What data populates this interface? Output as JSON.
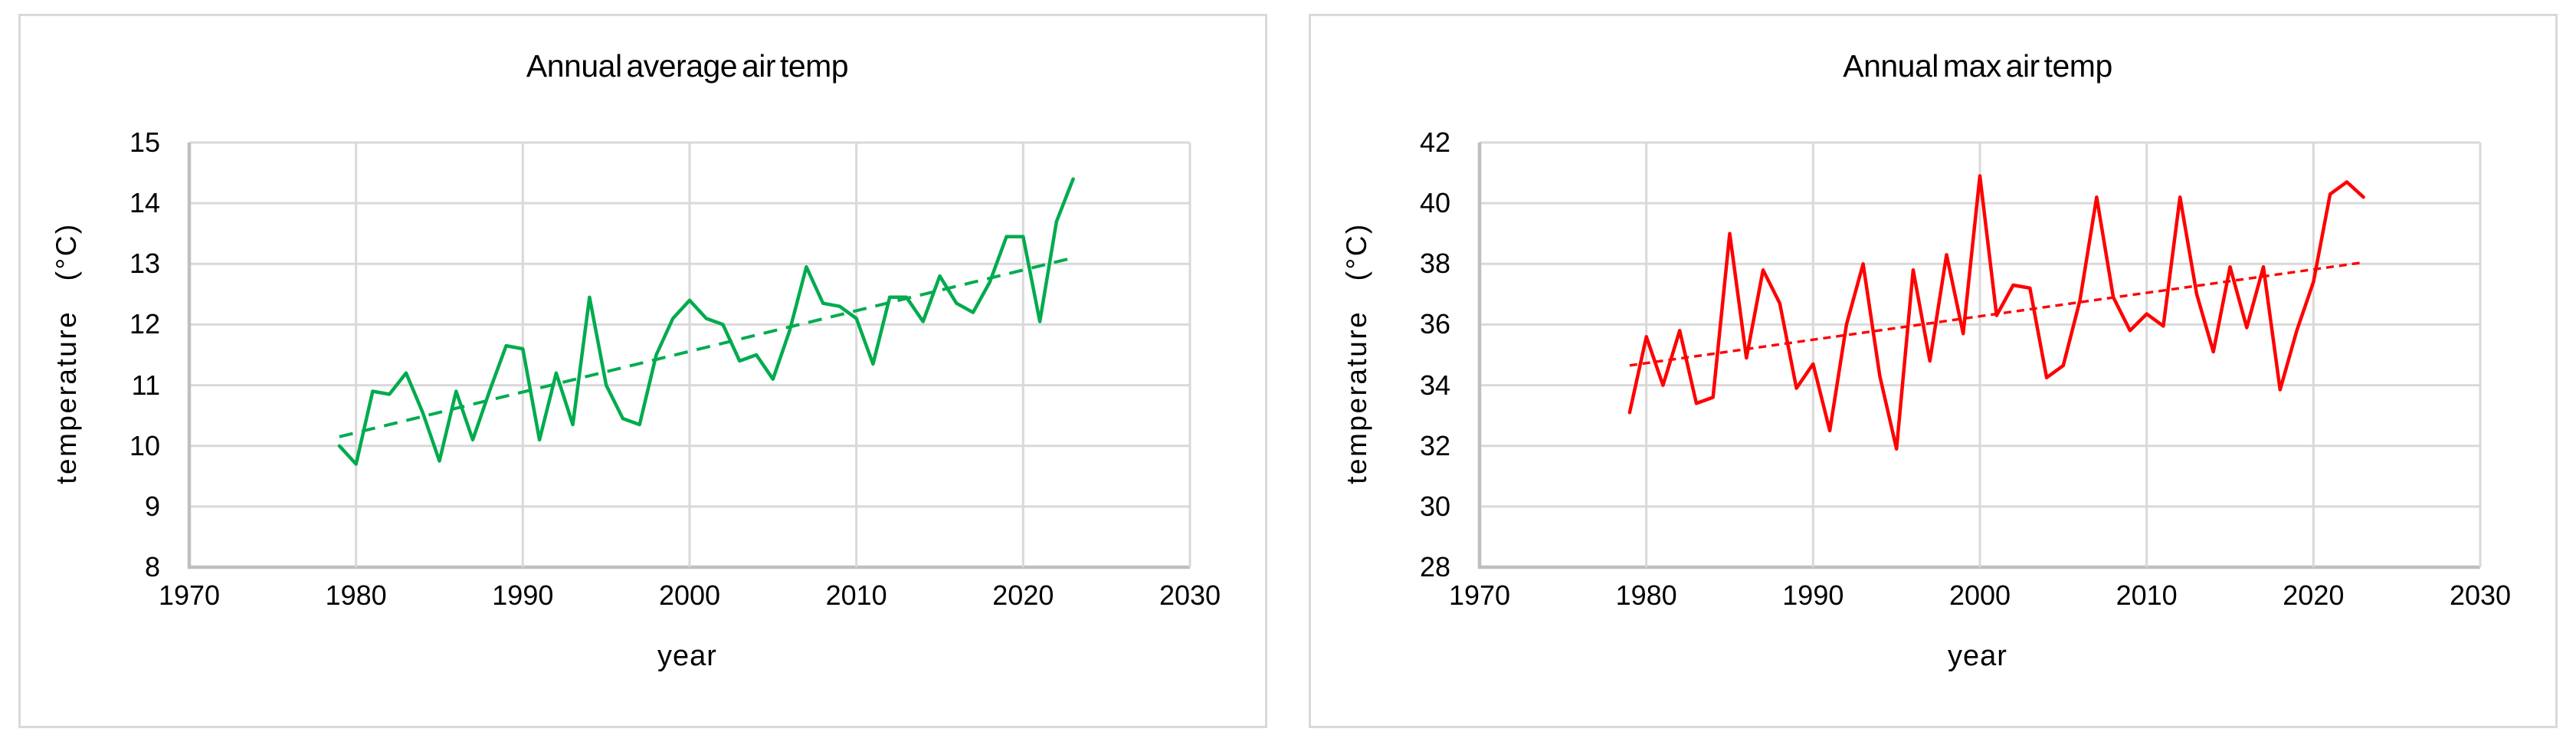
{
  "colors": {
    "series_green": "#00AB4E",
    "series_red": "#FF0000",
    "gridline": "#D9D9D9",
    "axis_line": "#BFBFBF",
    "panel_border": "#D9D9D9",
    "text": "#000000",
    "background": "#FFFFFF"
  },
  "chart_data": [
    {
      "type": "line",
      "title": "Annual average air temp",
      "xlabel": "year",
      "ylabel": "temperature   (°C)",
      "xlim": [
        1970,
        2030
      ],
      "ylim": [
        8,
        15
      ],
      "x_ticks": [
        1970,
        1980,
        1990,
        2000,
        2010,
        2020,
        2030
      ],
      "y_ticks": [
        8,
        9,
        10,
        11,
        12,
        13,
        14,
        15
      ],
      "grid": true,
      "legend_position": "none",
      "series": [
        {
          "name": "annual-average-temp",
          "color": "#00AB4E",
          "line_width": 4.5,
          "x": [
            1979,
            1980,
            1981,
            1982,
            1983,
            1984,
            1985,
            1986,
            1987,
            1988,
            1989,
            1990,
            1991,
            1992,
            1993,
            1994,
            1995,
            1996,
            1997,
            1998,
            1999,
            2000,
            2001,
            2002,
            2003,
            2004,
            2005,
            2006,
            2007,
            2008,
            2009,
            2010,
            2011,
            2012,
            2013,
            2014,
            2015,
            2016,
            2017,
            2018,
            2019,
            2020,
            2021,
            2022,
            2023
          ],
          "values": [
            10.0,
            9.7,
            10.9,
            10.85,
            11.2,
            10.55,
            9.75,
            10.9,
            10.1,
            10.9,
            11.65,
            11.6,
            10.1,
            11.2,
            10.35,
            12.45,
            11.0,
            10.45,
            10.35,
            11.5,
            12.1,
            12.4,
            12.1,
            12.0,
            11.4,
            11.5,
            11.1,
            11.9,
            12.95,
            12.35,
            12.3,
            12.1,
            11.35,
            12.45,
            12.45,
            12.05,
            12.8,
            12.35,
            12.2,
            12.7,
            13.45,
            13.45,
            12.05,
            13.7,
            14.4
          ]
        }
      ],
      "trend": {
        "name": "linear-trend",
        "color": "#00AB4E",
        "style": "dashed",
        "line_width": 4,
        "x": [
          1979,
          2023
        ],
        "values": [
          10.15,
          13.1
        ]
      }
    },
    {
      "type": "line",
      "title": "Annual max air temp",
      "xlabel": "year",
      "ylabel": "temperature   (°C)",
      "xlim": [
        1970,
        2030
      ],
      "ylim": [
        28,
        42
      ],
      "x_ticks": [
        1970,
        1980,
        1990,
        2000,
        2010,
        2020,
        2030
      ],
      "y_ticks": [
        28,
        30,
        32,
        34,
        36,
        38,
        40,
        42
      ],
      "grid": true,
      "legend_position": "none",
      "series": [
        {
          "name": "annual-max-temp",
          "color": "#FF0000",
          "line_width": 4.5,
          "x": [
            1979,
            1980,
            1981,
            1982,
            1983,
            1984,
            1985,
            1986,
            1987,
            1988,
            1989,
            1990,
            1991,
            1992,
            1993,
            1994,
            1995,
            1996,
            1997,
            1998,
            1999,
            2000,
            2001,
            2002,
            2003,
            2004,
            2005,
            2006,
            2007,
            2008,
            2009,
            2010,
            2011,
            2012,
            2013,
            2014,
            2015,
            2016,
            2017,
            2018,
            2019,
            2020,
            2021,
            2022,
            2023
          ],
          "values": [
            33.1,
            35.6,
            34.0,
            35.8,
            33.4,
            33.6,
            39.0,
            34.9,
            37.8,
            36.7,
            33.9,
            34.7,
            32.5,
            36.0,
            38.0,
            34.3,
            31.9,
            37.8,
            34.8,
            38.3,
            35.7,
            40.9,
            36.3,
            37.3,
            37.2,
            34.25,
            34.65,
            36.8,
            40.2,
            36.9,
            35.8,
            36.35,
            35.95,
            40.2,
            37.0,
            35.1,
            37.9,
            35.9,
            37.9,
            33.85,
            35.8,
            37.4,
            40.3,
            40.7,
            40.2
          ]
        }
      ],
      "trend": {
        "name": "linear-trend",
        "color": "#FF0000",
        "style": "short-dash",
        "line_width": 3.4,
        "x": [
          1979,
          2023
        ],
        "values": [
          34.65,
          38.05
        ]
      }
    }
  ]
}
